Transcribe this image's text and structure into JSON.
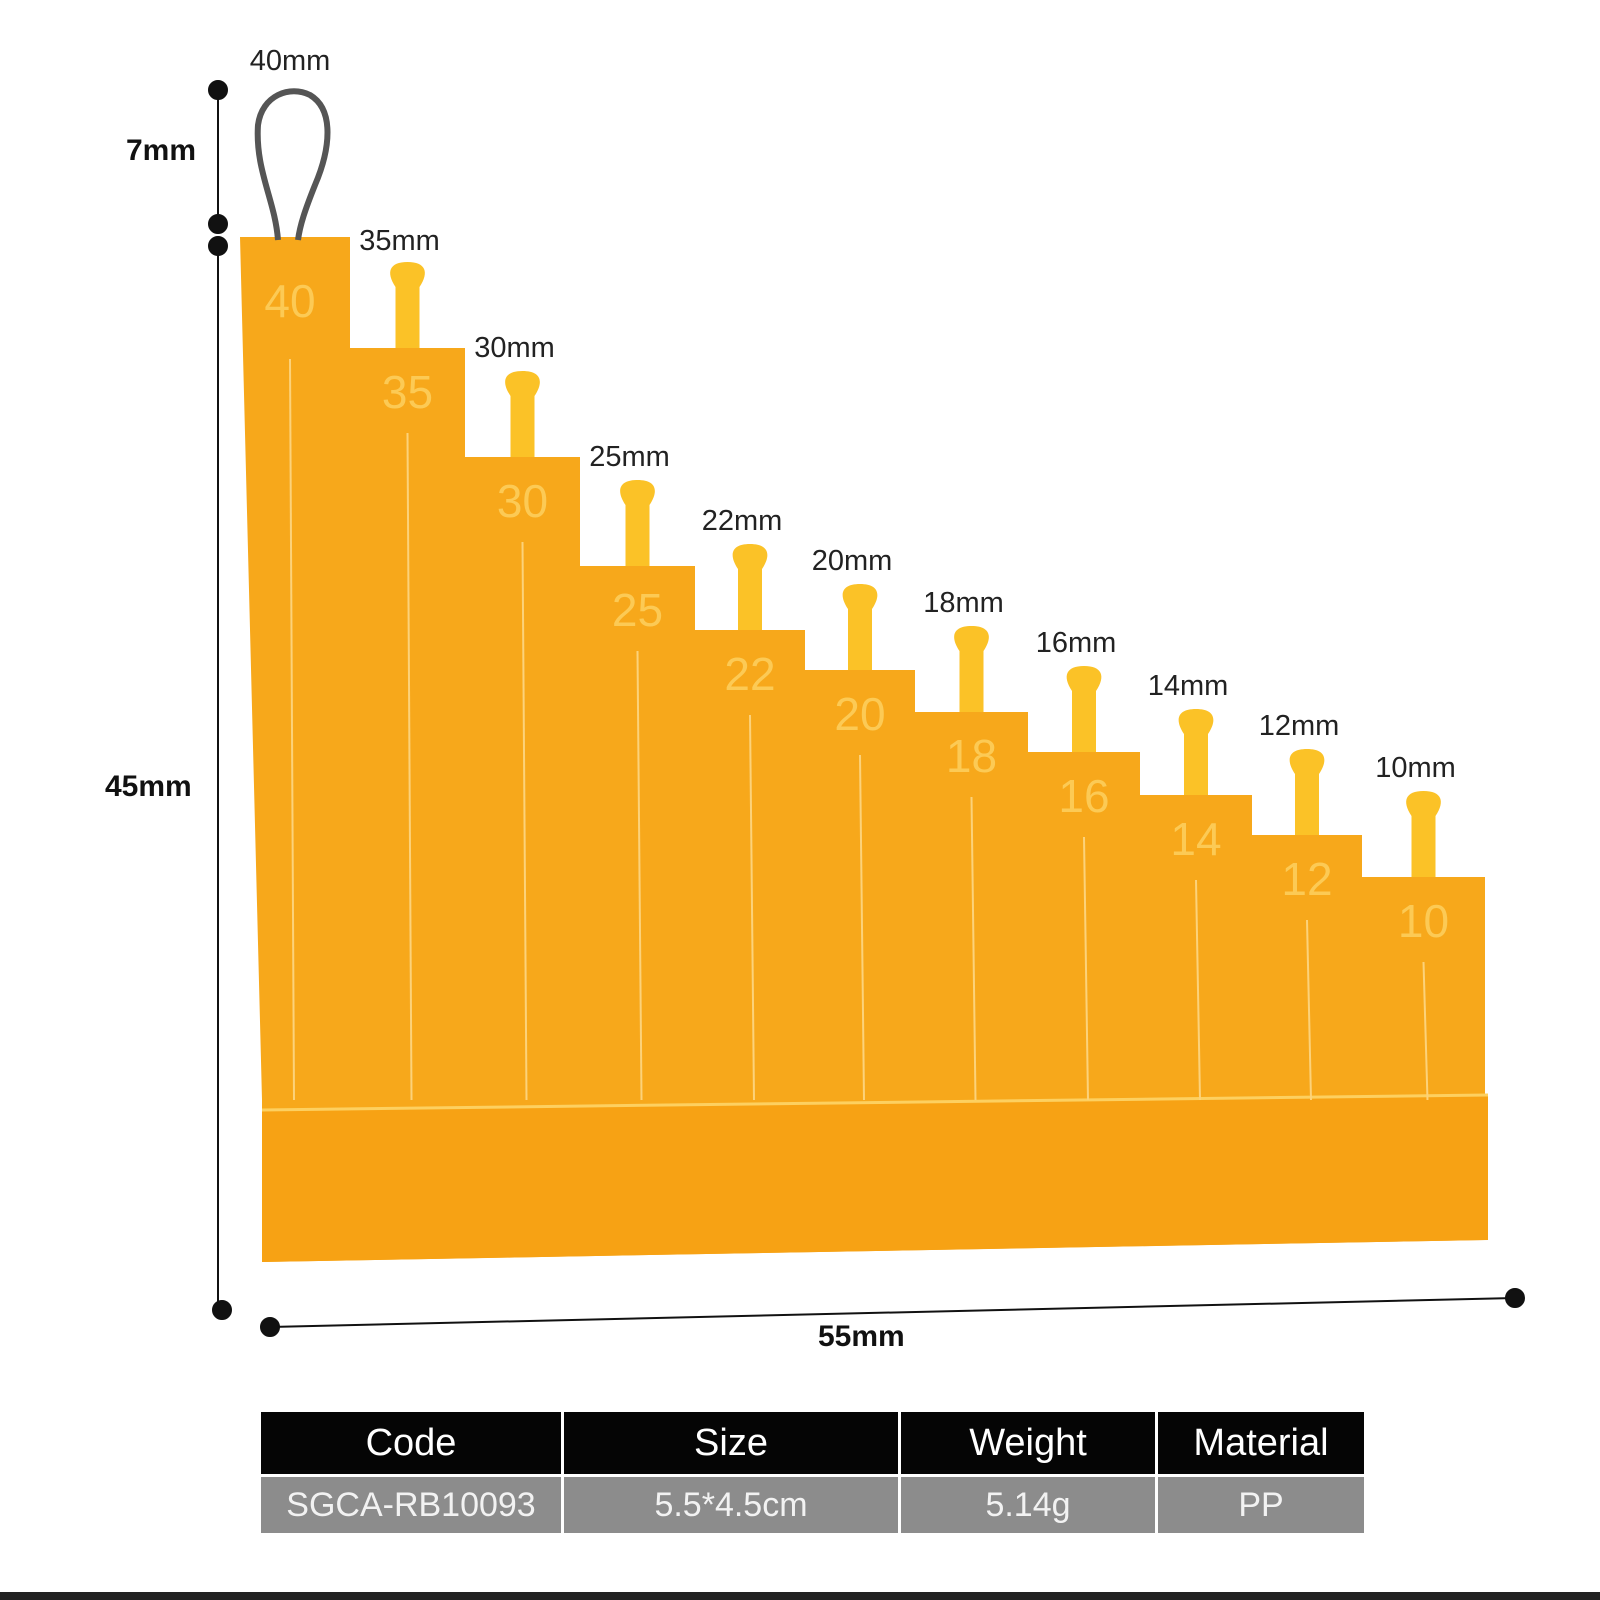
{
  "product": {
    "color": "#f7a81b",
    "hook_label": "40mm",
    "steps": [
      {
        "value": "40",
        "label": "40mm"
      },
      {
        "value": "35",
        "label": "35mm"
      },
      {
        "value": "30",
        "label": "30mm"
      },
      {
        "value": "25",
        "label": "25mm"
      },
      {
        "value": "22",
        "label": "22mm"
      },
      {
        "value": "20",
        "label": "20mm"
      },
      {
        "value": "18",
        "label": "18mm"
      },
      {
        "value": "16",
        "label": "16mm"
      },
      {
        "value": "14",
        "label": "14mm"
      },
      {
        "value": "12",
        "label": "12mm"
      },
      {
        "value": "10",
        "label": "10mm"
      }
    ]
  },
  "dimensions": {
    "hook_height": "7mm",
    "body_height": "45mm",
    "width": "55mm"
  },
  "spec_table": {
    "headers": [
      "Code",
      "Size",
      "Weight",
      "Material"
    ],
    "row": [
      "SGCA-RB10093",
      "5.5*4.5cm",
      "5.14g",
      "PP"
    ]
  }
}
